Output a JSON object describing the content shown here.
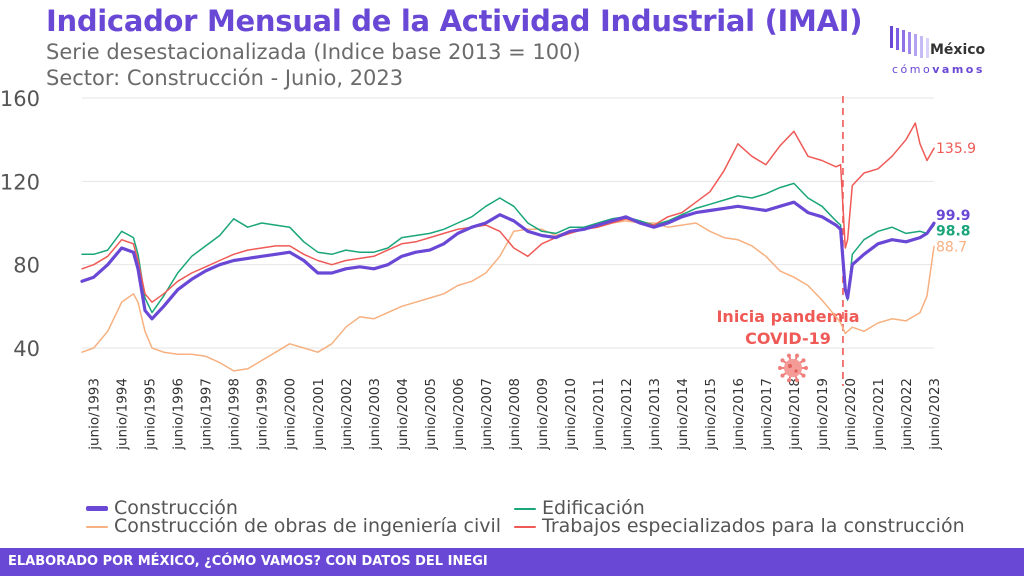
{
  "header": {
    "title": "Indicador Mensual de la Actividad Industrial (IMAI)",
    "subtitle_1": "Serie desestacionalizada (Indice base 2013 = 100)",
    "subtitle_2": "Sector: Construcción - Junio, 2023"
  },
  "logo": {
    "name": "México",
    "tag_a": "cómo",
    "tag_b": "vamos"
  },
  "annotation": {
    "line1": "Inicia pandemia",
    "line2": "COVID-19",
    "icon": "virus-icon",
    "x_date": "2020-03"
  },
  "footer": {
    "text": "ELABORADO POR MÉXICO, ¿CÓMO VAMOS? CON DATOS DEL INEGI"
  },
  "colors": {
    "accent": "#6a48d6",
    "construccion": "#6a48d6",
    "edificacion": "#1aa67a",
    "ingenieria": "#f7b080",
    "especializados": "#ef5a56",
    "annotation": "#ef5a56"
  },
  "chart_data": {
    "type": "line",
    "ylim": [
      20,
      160
    ],
    "yticks": [
      40,
      80,
      120,
      160
    ],
    "grid": true,
    "legend_position": "bottom",
    "x_range": [
      "1993-01",
      "2023-06"
    ],
    "xtick_labels": [
      "junio/1993",
      "junio/1994",
      "junio/1995",
      "junio/1996",
      "junio/1997",
      "junio/1998",
      "junio/1999",
      "junio/2000",
      "junio/2001",
      "junio/2002",
      "junio/2003",
      "junio/2004",
      "junio/2005",
      "junio/2006",
      "junio/2007",
      "junio/2008",
      "junio/2009",
      "junio/2010",
      "junio/2011",
      "junio/2012",
      "junio/2013",
      "junio/2014",
      "junio/2015",
      "junio/2016",
      "junio/2017",
      "junio/2018",
      "junio/2019",
      "junio/2020",
      "junio/2021",
      "junio/2022",
      "junio/2023"
    ],
    "series": [
      {
        "name": "Construcción",
        "color": "#6a48d6",
        "end_label": "99.9",
        "points": [
          [
            "1993-01",
            72
          ],
          [
            "1993-06",
            74
          ],
          [
            "1993-12",
            80
          ],
          [
            "1994-06",
            88
          ],
          [
            "1994-11",
            86
          ],
          [
            "1995-01",
            78
          ],
          [
            "1995-04",
            58
          ],
          [
            "1995-07",
            54
          ],
          [
            "1995-12",
            60
          ],
          [
            "1996-06",
            68
          ],
          [
            "1996-12",
            73
          ],
          [
            "1997-06",
            77
          ],
          [
            "1997-12",
            80
          ],
          [
            "1998-06",
            82
          ],
          [
            "1998-12",
            83
          ],
          [
            "1999-06",
            84
          ],
          [
            "1999-12",
            85
          ],
          [
            "2000-06",
            86
          ],
          [
            "2000-12",
            82
          ],
          [
            "2001-06",
            76
          ],
          [
            "2001-12",
            76
          ],
          [
            "2002-06",
            78
          ],
          [
            "2002-12",
            79
          ],
          [
            "2003-06",
            78
          ],
          [
            "2003-12",
            80
          ],
          [
            "2004-06",
            84
          ],
          [
            "2004-12",
            86
          ],
          [
            "2005-06",
            87
          ],
          [
            "2005-12",
            90
          ],
          [
            "2006-06",
            95
          ],
          [
            "2006-12",
            98
          ],
          [
            "2007-06",
            100
          ],
          [
            "2007-12",
            104
          ],
          [
            "2008-06",
            101
          ],
          [
            "2008-12",
            96
          ],
          [
            "2009-06",
            94
          ],
          [
            "2009-12",
            93
          ],
          [
            "2010-06",
            96
          ],
          [
            "2010-12",
            97
          ],
          [
            "2011-06",
            99
          ],
          [
            "2011-12",
            101
          ],
          [
            "2012-06",
            103
          ],
          [
            "2012-12",
            100
          ],
          [
            "2013-06",
            98
          ],
          [
            "2013-12",
            100
          ],
          [
            "2014-06",
            103
          ],
          [
            "2014-12",
            105
          ],
          [
            "2015-06",
            106
          ],
          [
            "2015-12",
            107
          ],
          [
            "2016-06",
            108
          ],
          [
            "2016-12",
            107
          ],
          [
            "2017-06",
            106
          ],
          [
            "2017-12",
            108
          ],
          [
            "2018-06",
            110
          ],
          [
            "2018-12",
            105
          ],
          [
            "2019-06",
            103
          ],
          [
            "2019-12",
            99
          ],
          [
            "2020-02",
            97
          ],
          [
            "2020-04",
            68
          ],
          [
            "2020-05",
            64
          ],
          [
            "2020-07",
            80
          ],
          [
            "2020-12",
            85
          ],
          [
            "2021-06",
            90
          ],
          [
            "2021-12",
            92
          ],
          [
            "2022-06",
            91
          ],
          [
            "2022-12",
            93
          ],
          [
            "2023-03",
            95
          ],
          [
            "2023-06",
            99.9
          ]
        ]
      },
      {
        "name": "Edificación",
        "color": "#1aa67a",
        "end_label": "98.8",
        "points": [
          [
            "1993-01",
            85
          ],
          [
            "1993-06",
            85
          ],
          [
            "1993-12",
            87
          ],
          [
            "1994-06",
            96
          ],
          [
            "1994-11",
            93
          ],
          [
            "1995-01",
            85
          ],
          [
            "1995-04",
            64
          ],
          [
            "1995-07",
            57
          ],
          [
            "1995-12",
            65
          ],
          [
            "1996-06",
            76
          ],
          [
            "1996-12",
            84
          ],
          [
            "1997-06",
            89
          ],
          [
            "1997-12",
            94
          ],
          [
            "1998-06",
            102
          ],
          [
            "1998-12",
            98
          ],
          [
            "1999-06",
            100
          ],
          [
            "1999-12",
            99
          ],
          [
            "2000-06",
            98
          ],
          [
            "2000-12",
            91
          ],
          [
            "2001-06",
            86
          ],
          [
            "2001-12",
            85
          ],
          [
            "2002-06",
            87
          ],
          [
            "2002-12",
            86
          ],
          [
            "2003-06",
            86
          ],
          [
            "2003-12",
            88
          ],
          [
            "2004-06",
            93
          ],
          [
            "2004-12",
            94
          ],
          [
            "2005-06",
            95
          ],
          [
            "2005-12",
            97
          ],
          [
            "2006-06",
            100
          ],
          [
            "2006-12",
            103
          ],
          [
            "2007-06",
            108
          ],
          [
            "2007-12",
            112
          ],
          [
            "2008-06",
            108
          ],
          [
            "2008-12",
            100
          ],
          [
            "2009-06",
            96
          ],
          [
            "2009-12",
            95
          ],
          [
            "2010-06",
            98
          ],
          [
            "2010-12",
            98
          ],
          [
            "2011-06",
            100
          ],
          [
            "2011-12",
            102
          ],
          [
            "2012-06",
            103
          ],
          [
            "2012-12",
            101
          ],
          [
            "2013-06",
            99
          ],
          [
            "2013-12",
            101
          ],
          [
            "2014-06",
            104
          ],
          [
            "2014-12",
            107
          ],
          [
            "2015-06",
            109
          ],
          [
            "2015-12",
            111
          ],
          [
            "2016-06",
            113
          ],
          [
            "2016-12",
            112
          ],
          [
            "2017-06",
            114
          ],
          [
            "2017-12",
            117
          ],
          [
            "2018-06",
            119
          ],
          [
            "2018-12",
            112
          ],
          [
            "2019-06",
            108
          ],
          [
            "2019-12",
            101
          ],
          [
            "2020-02",
            99
          ],
          [
            "2020-04",
            68
          ],
          [
            "2020-05",
            63
          ],
          [
            "2020-07",
            85
          ],
          [
            "2020-12",
            92
          ],
          [
            "2021-06",
            96
          ],
          [
            "2021-12",
            98
          ],
          [
            "2022-06",
            95
          ],
          [
            "2022-12",
            96
          ],
          [
            "2023-03",
            95
          ],
          [
            "2023-06",
            98.8
          ]
        ]
      },
      {
        "name": "Construcción de obras de ingeniería civil",
        "color": "#f7b080",
        "end_label": "88.7",
        "points": [
          [
            "1993-01",
            38
          ],
          [
            "1993-06",
            40
          ],
          [
            "1993-12",
            48
          ],
          [
            "1994-06",
            62
          ],
          [
            "1994-11",
            66
          ],
          [
            "1995-01",
            62
          ],
          [
            "1995-04",
            48
          ],
          [
            "1995-07",
            40
          ],
          [
            "1995-12",
            38
          ],
          [
            "1996-06",
            37
          ],
          [
            "1996-12",
            37
          ],
          [
            "1997-06",
            36
          ],
          [
            "1997-12",
            33
          ],
          [
            "1998-06",
            29
          ],
          [
            "1998-12",
            30
          ],
          [
            "1999-06",
            34
          ],
          [
            "1999-12",
            38
          ],
          [
            "2000-06",
            42
          ],
          [
            "2000-12",
            40
          ],
          [
            "2001-06",
            38
          ],
          [
            "2001-12",
            42
          ],
          [
            "2002-06",
            50
          ],
          [
            "2002-12",
            55
          ],
          [
            "2003-06",
            54
          ],
          [
            "2003-12",
            57
          ],
          [
            "2004-06",
            60
          ],
          [
            "2004-12",
            62
          ],
          [
            "2005-06",
            64
          ],
          [
            "2005-12",
            66
          ],
          [
            "2006-06",
            70
          ],
          [
            "2006-12",
            72
          ],
          [
            "2007-06",
            76
          ],
          [
            "2007-12",
            84
          ],
          [
            "2008-06",
            96
          ],
          [
            "2008-12",
            97
          ],
          [
            "2009-06",
            97
          ],
          [
            "2009-12",
            94
          ],
          [
            "2010-06",
            96
          ],
          [
            "2010-12",
            97
          ],
          [
            "2011-06",
            99
          ],
          [
            "2011-12",
            100
          ],
          [
            "2012-06",
            101
          ],
          [
            "2012-12",
            100
          ],
          [
            "2013-06",
            100
          ],
          [
            "2013-12",
            98
          ],
          [
            "2014-06",
            99
          ],
          [
            "2014-12",
            100
          ],
          [
            "2015-06",
            96
          ],
          [
            "2015-12",
            93
          ],
          [
            "2016-06",
            92
          ],
          [
            "2016-12",
            89
          ],
          [
            "2017-06",
            84
          ],
          [
            "2017-12",
            77
          ],
          [
            "2018-06",
            74
          ],
          [
            "2018-12",
            70
          ],
          [
            "2019-06",
            63
          ],
          [
            "2019-12",
            55
          ],
          [
            "2020-02",
            52
          ],
          [
            "2020-04",
            47
          ],
          [
            "2020-07",
            50
          ],
          [
            "2020-12",
            48
          ],
          [
            "2021-06",
            52
          ],
          [
            "2021-12",
            54
          ],
          [
            "2022-06",
            53
          ],
          [
            "2022-12",
            57
          ],
          [
            "2023-03",
            65
          ],
          [
            "2023-06",
            88.7
          ]
        ]
      },
      {
        "name": "Trabajos especializados para la construcción",
        "color": "#ef5a56",
        "end_label": "135.9",
        "points": [
          [
            "1993-01",
            78
          ],
          [
            "1993-06",
            80
          ],
          [
            "1993-12",
            84
          ],
          [
            "1994-06",
            92
          ],
          [
            "1994-11",
            90
          ],
          [
            "1995-01",
            82
          ],
          [
            "1995-04",
            66
          ],
          [
            "1995-07",
            62
          ],
          [
            "1995-12",
            66
          ],
          [
            "1996-06",
            72
          ],
          [
            "1996-12",
            76
          ],
          [
            "1997-06",
            79
          ],
          [
            "1997-12",
            82
          ],
          [
            "1998-06",
            85
          ],
          [
            "1998-12",
            87
          ],
          [
            "1999-06",
            88
          ],
          [
            "1999-12",
            89
          ],
          [
            "2000-06",
            89
          ],
          [
            "2000-12",
            85
          ],
          [
            "2001-06",
            82
          ],
          [
            "2001-12",
            80
          ],
          [
            "2002-06",
            82
          ],
          [
            "2002-12",
            83
          ],
          [
            "2003-06",
            84
          ],
          [
            "2003-12",
            87
          ],
          [
            "2004-06",
            90
          ],
          [
            "2004-12",
            91
          ],
          [
            "2005-06",
            93
          ],
          [
            "2005-12",
            95
          ],
          [
            "2006-06",
            97
          ],
          [
            "2006-12",
            98
          ],
          [
            "2007-06",
            99
          ],
          [
            "2007-12",
            96
          ],
          [
            "2008-06",
            88
          ],
          [
            "2008-12",
            84
          ],
          [
            "2009-06",
            90
          ],
          [
            "2009-12",
            93
          ],
          [
            "2010-06",
            95
          ],
          [
            "2010-12",
            97
          ],
          [
            "2011-06",
            98
          ],
          [
            "2011-12",
            100
          ],
          [
            "2012-06",
            102
          ],
          [
            "2012-12",
            100
          ],
          [
            "2013-06",
            99
          ],
          [
            "2013-12",
            103
          ],
          [
            "2014-06",
            105
          ],
          [
            "2014-12",
            110
          ],
          [
            "2015-06",
            115
          ],
          [
            "2015-12",
            125
          ],
          [
            "2016-06",
            138
          ],
          [
            "2016-12",
            132
          ],
          [
            "2017-06",
            128
          ],
          [
            "2017-12",
            137
          ],
          [
            "2018-06",
            144
          ],
          [
            "2018-12",
            132
          ],
          [
            "2019-06",
            130
          ],
          [
            "2019-12",
            127
          ],
          [
            "2020-02",
            128
          ],
          [
            "2020-04",
            88
          ],
          [
            "2020-05",
            92
          ],
          [
            "2020-07",
            118
          ],
          [
            "2020-12",
            124
          ],
          [
            "2021-06",
            126
          ],
          [
            "2021-12",
            132
          ],
          [
            "2022-06",
            140
          ],
          [
            "2022-10",
            148
          ],
          [
            "2022-12",
            138
          ],
          [
            "2023-03",
            130
          ],
          [
            "2023-06",
            135.9
          ]
        ]
      }
    ]
  }
}
